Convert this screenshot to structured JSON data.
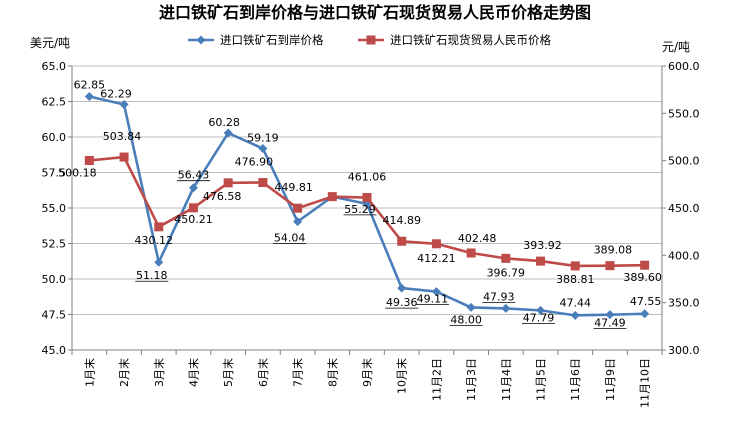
{
  "chart_data": {
    "type": "line",
    "title": "进口铁矿石到岸价格与进口铁矿石现货贸易人民币价格走势图",
    "ylabel_left": "美元/吨",
    "ylabel_right": "元/吨",
    "categories": [
      "1月末",
      "2月末",
      "3月末",
      "4月末",
      "5月末",
      "6月末",
      "7月末",
      "8月末",
      "9月末",
      "10月末",
      "11月2日",
      "11月3日",
      "11月4日",
      "11月5日",
      "11月6日",
      "11月9日",
      "11月10日"
    ],
    "ylim_left": [
      45.0,
      65.0
    ],
    "ylim_right": [
      300.0,
      600.0
    ],
    "yticks_left": [
      "45.0",
      "47.5",
      "50.0",
      "52.5",
      "55.0",
      "57.5",
      "60.0",
      "62.5",
      "65.0"
    ],
    "yticks_right": [
      "300.0",
      "350.0",
      "400.0",
      "450.0",
      "500.0",
      "550.0",
      "600.0"
    ],
    "grid": "horizontal",
    "legend_position": "top",
    "series": [
      {
        "name": "进口铁矿石到岸价格",
        "axis": "left",
        "color": "#4a7ebb",
        "marker": "diamond",
        "values": [
          62.85,
          62.29,
          51.18,
          56.43,
          60.28,
          59.19,
          54.04,
          55.8,
          55.29,
          49.36,
          49.11,
          48.0,
          47.93,
          47.79,
          47.44,
          47.49,
          47.55
        ],
        "labels": [
          "62.85",
          "62.29",
          "51.18",
          "56.43",
          "60.28",
          "59.19",
          "54.04",
          "",
          "55.29",
          "49.36",
          "49.11",
          "48.00",
          "47.93",
          "47.79",
          "47.44",
          "47.49",
          "47.55"
        ]
      },
      {
        "name": "进口铁矿石现货贸易人民币价格",
        "axis": "right",
        "color": "#be4b48",
        "marker": "square",
        "values": [
          500.18,
          503.84,
          430.12,
          450.21,
          476.58,
          476.9,
          449.81,
          462.0,
          461.06,
          414.89,
          412.21,
          402.48,
          396.79,
          393.92,
          388.81,
          389.08,
          389.6
        ],
        "labels": [
          "500.18",
          "503.84",
          "430.12",
          "450.21",
          "476.58",
          "476.90",
          "449.81",
          "",
          "461.06",
          "414.89",
          "412.21",
          "402.48",
          "396.79",
          "393.92",
          "388.81",
          "389.08",
          "389.60"
        ]
      }
    ]
  }
}
